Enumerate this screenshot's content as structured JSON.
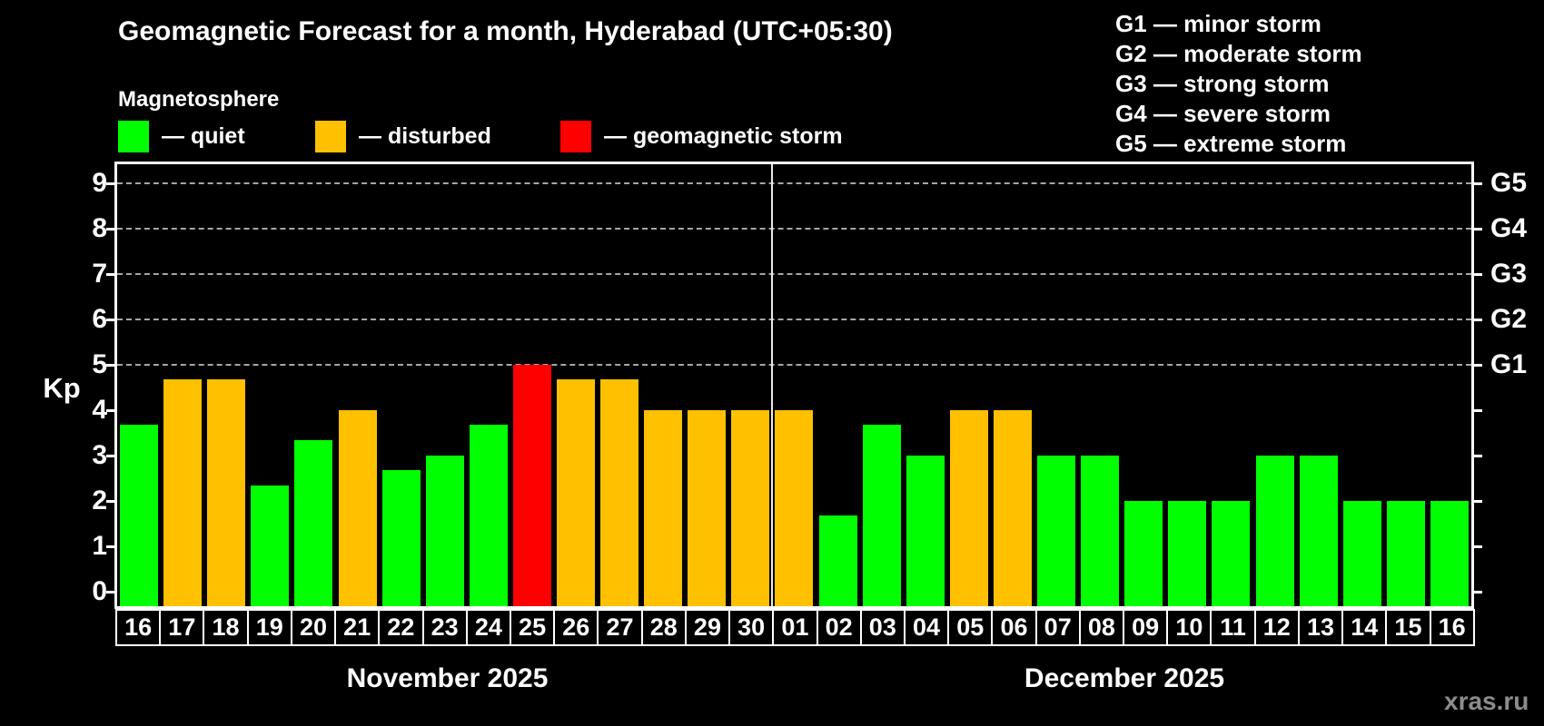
{
  "header": {
    "title": "Geomagnetic Forecast for a month, Hyderabad (UTC+05:30)",
    "subtitle": "Magnetosphere"
  },
  "legend": {
    "items": [
      {
        "key": "quiet",
        "label": "— quiet",
        "color": "#00ff00"
      },
      {
        "key": "disturbed",
        "label": "— disturbed",
        "color": "#ffc000"
      },
      {
        "key": "storm",
        "label": "— geomagnetic storm",
        "color": "#ff0000"
      }
    ]
  },
  "g_legend": {
    "lines": [
      "G1 — minor storm",
      "G2 — moderate storm",
      "G3 — strong storm",
      "G4 — severe storm",
      "G5 — extreme storm"
    ]
  },
  "watermark": "xras.ru",
  "chart_data": {
    "type": "bar",
    "title": "Geomagnetic Forecast for a month, Hyderabad (UTC+05:30)",
    "ylabel": "Kp",
    "ylim": [
      0,
      9
    ],
    "y_ticks": [
      0,
      1,
      2,
      3,
      4,
      5,
      6,
      7,
      8,
      9
    ],
    "gridlines_at": [
      5,
      6,
      7,
      8,
      9
    ],
    "grid_style": "dashed",
    "legend_position": "top",
    "right_axis": [
      {
        "label": "G1",
        "kp": 5
      },
      {
        "label": "G2",
        "kp": 6
      },
      {
        "label": "G3",
        "kp": 7
      },
      {
        "label": "G4",
        "kp": 8
      },
      {
        "label": "G5",
        "kp": 9
      }
    ],
    "status_colors": {
      "quiet": "#00ff00",
      "disturbed": "#ffc000",
      "storm": "#ff0000"
    },
    "months": [
      {
        "label": "November 2025",
        "start": 0,
        "count": 15
      },
      {
        "label": "December 2025",
        "start": 15,
        "count": 16
      }
    ],
    "bars": [
      {
        "day": "16",
        "month": "November",
        "kp": 3.67,
        "status": "quiet"
      },
      {
        "day": "17",
        "month": "November",
        "kp": 4.67,
        "status": "disturbed"
      },
      {
        "day": "18",
        "month": "November",
        "kp": 4.67,
        "status": "disturbed"
      },
      {
        "day": "19",
        "month": "November",
        "kp": 2.33,
        "status": "quiet"
      },
      {
        "day": "20",
        "month": "November",
        "kp": 3.33,
        "status": "quiet"
      },
      {
        "day": "21",
        "month": "November",
        "kp": 4.0,
        "status": "disturbed"
      },
      {
        "day": "22",
        "month": "November",
        "kp": 2.67,
        "status": "quiet"
      },
      {
        "day": "23",
        "month": "November",
        "kp": 3.0,
        "status": "quiet"
      },
      {
        "day": "24",
        "month": "November",
        "kp": 3.67,
        "status": "quiet"
      },
      {
        "day": "25",
        "month": "November",
        "kp": 5.0,
        "status": "storm"
      },
      {
        "day": "26",
        "month": "November",
        "kp": 4.67,
        "status": "disturbed"
      },
      {
        "day": "27",
        "month": "November",
        "kp": 4.67,
        "status": "disturbed"
      },
      {
        "day": "28",
        "month": "November",
        "kp": 4.0,
        "status": "disturbed"
      },
      {
        "day": "29",
        "month": "November",
        "kp": 4.0,
        "status": "disturbed"
      },
      {
        "day": "30",
        "month": "November",
        "kp": 4.0,
        "status": "disturbed"
      },
      {
        "day": "01",
        "month": "December",
        "kp": 4.0,
        "status": "disturbed"
      },
      {
        "day": "02",
        "month": "December",
        "kp": 1.67,
        "status": "quiet"
      },
      {
        "day": "03",
        "month": "December",
        "kp": 3.67,
        "status": "quiet"
      },
      {
        "day": "04",
        "month": "December",
        "kp": 3.0,
        "status": "quiet"
      },
      {
        "day": "05",
        "month": "December",
        "kp": 4.0,
        "status": "disturbed"
      },
      {
        "day": "06",
        "month": "December",
        "kp": 4.0,
        "status": "disturbed"
      },
      {
        "day": "07",
        "month": "December",
        "kp": 3.0,
        "status": "quiet"
      },
      {
        "day": "08",
        "month": "December",
        "kp": 3.0,
        "status": "quiet"
      },
      {
        "day": "09",
        "month": "December",
        "kp": 2.0,
        "status": "quiet"
      },
      {
        "day": "10",
        "month": "December",
        "kp": 2.0,
        "status": "quiet"
      },
      {
        "day": "11",
        "month": "December",
        "kp": 2.0,
        "status": "quiet"
      },
      {
        "day": "12",
        "month": "December",
        "kp": 3.0,
        "status": "quiet"
      },
      {
        "day": "13",
        "month": "December",
        "kp": 3.0,
        "status": "quiet"
      },
      {
        "day": "14",
        "month": "December",
        "kp": 2.0,
        "status": "quiet"
      },
      {
        "day": "15",
        "month": "December",
        "kp": 2.0,
        "status": "quiet"
      },
      {
        "day": "16",
        "month": "December",
        "kp": 2.0,
        "status": "quiet"
      }
    ]
  }
}
